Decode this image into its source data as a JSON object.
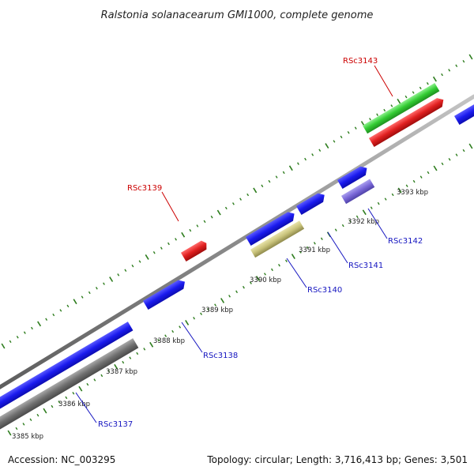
{
  "title": "Ralstonia solanacearum GMI1000, complete genome",
  "footer": {
    "accession": "Accession: NC_003295",
    "summary": "Topology: circular; Length: 3,716,413 bp; Genes: 3,501"
  },
  "colors": {
    "backbone": "#8a8a8a",
    "tick": "#2e7d1e",
    "cds_blue": "#1a1aee",
    "gray_feature": "#707070",
    "red_feature": "#e02020",
    "green_feature": "#33cc33",
    "olive_feature": "#c8c27a",
    "purple_feature": "#7a68d8",
    "label_blue": "#1515c0",
    "label_red": "#cc0000"
  },
  "kbp_labels": [
    "3385 kbp",
    "3386 kbp",
    "3387 kbp",
    "3388 kbp",
    "3389 kbp",
    "3390 kbp",
    "3391 kbp",
    "3392 kbp",
    "3393 kbp"
  ],
  "gene_labels": [
    {
      "text": "RSc3137",
      "color": "blue"
    },
    {
      "text": "RSc3138",
      "color": "blue"
    },
    {
      "text": "RSc3139",
      "color": "red"
    },
    {
      "text": "RSc3140",
      "color": "blue"
    },
    {
      "text": "RSc3141",
      "color": "blue"
    },
    {
      "text": "RSc3142",
      "color": "blue"
    },
    {
      "text": "RSc3143",
      "color": "red"
    }
  ]
}
